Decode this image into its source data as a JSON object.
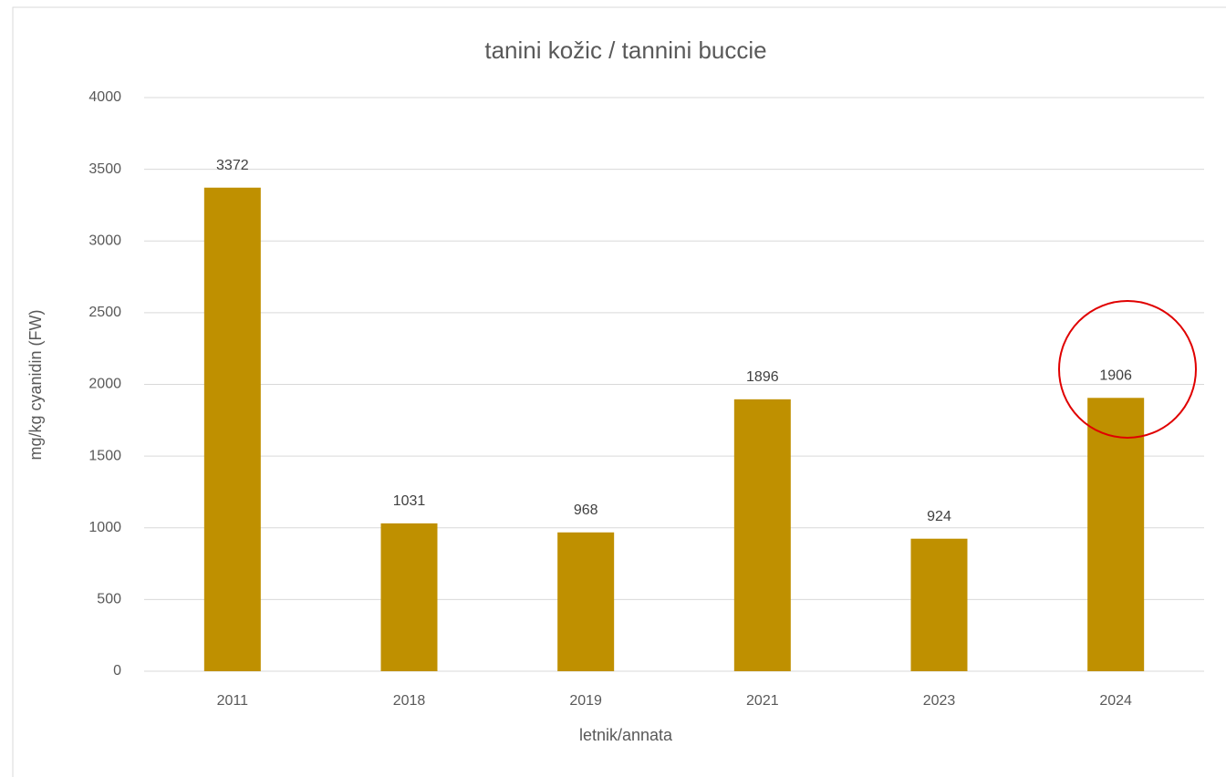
{
  "chart_data": {
    "type": "bar",
    "title": "tanini kožic / tannini buccie",
    "x_label": "letnik/annata",
    "y_label": "mg/kg  cyanidin (FW)",
    "categories": [
      "2011",
      "2018",
      "2019",
      "2021",
      "2023",
      "2024"
    ],
    "values": [
      3372,
      1031,
      968,
      1896,
      924,
      1906
    ],
    "color": "#bf9000",
    "ylim": [
      0,
      4000
    ],
    "yticks": [
      0,
      500,
      1000,
      1500,
      2000,
      2500,
      3000,
      3500,
      4000
    ],
    "grid": true
  }
}
